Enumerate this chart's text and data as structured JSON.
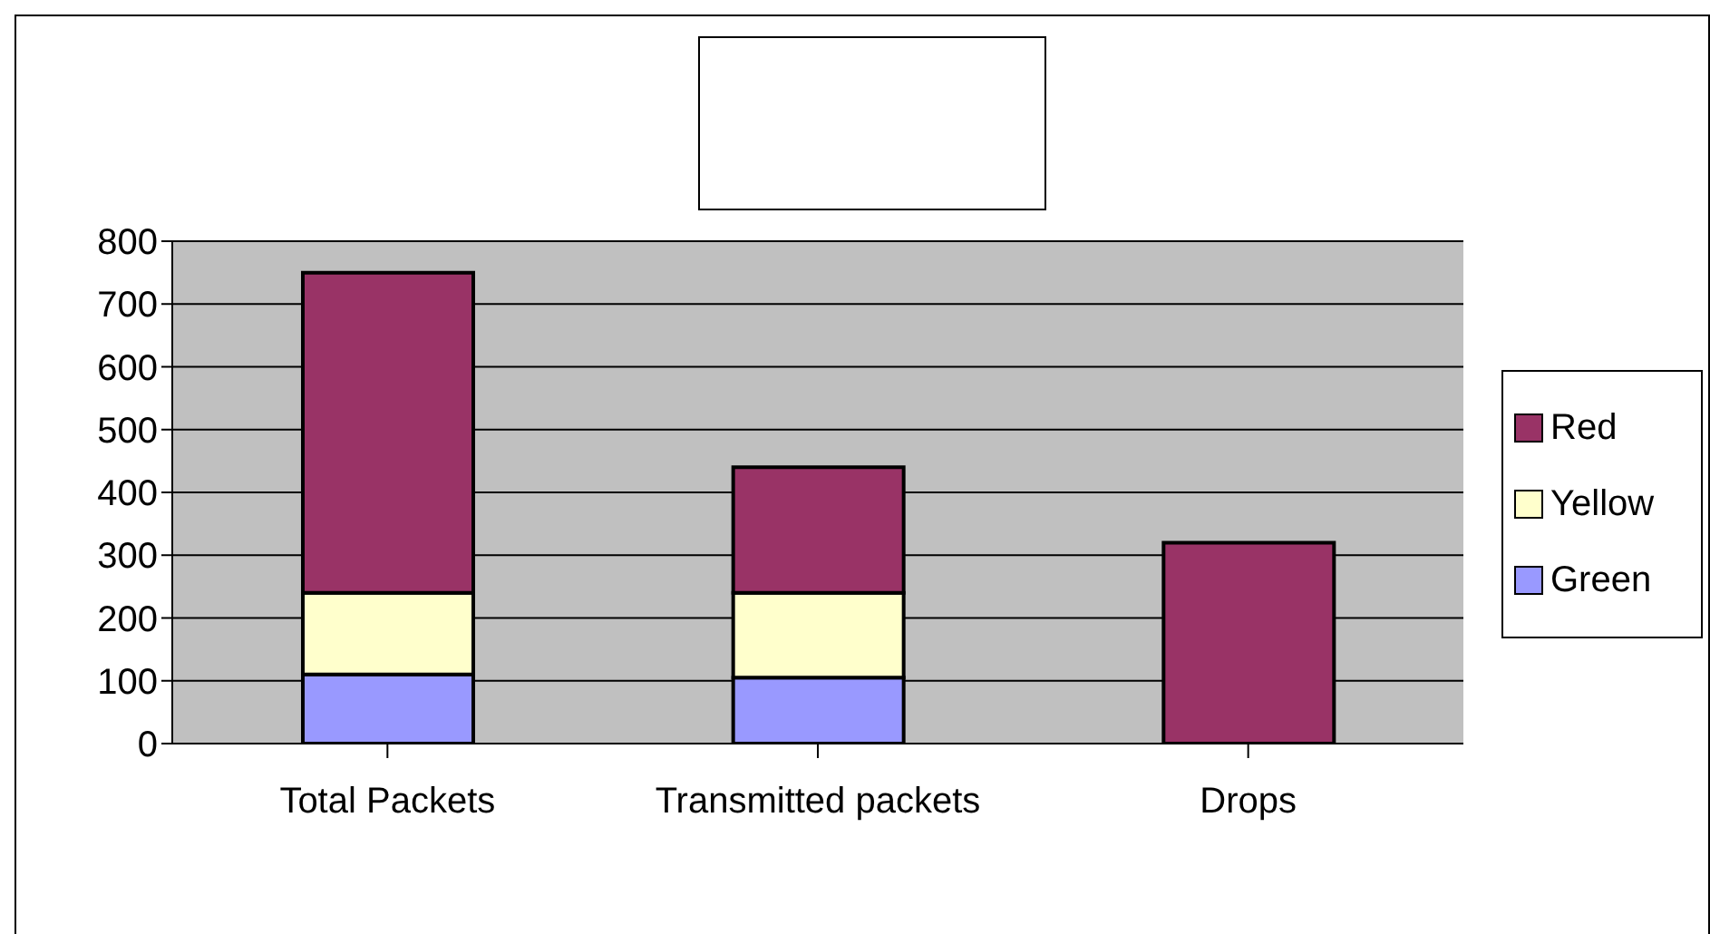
{
  "chart_data": {
    "type": "bar",
    "stacked": true,
    "categories": [
      "Total Packets",
      "Transmitted packets",
      "Drops"
    ],
    "series": [
      {
        "name": "Green",
        "color": "#9999ff",
        "values": [
          110,
          105,
          0
        ]
      },
      {
        "name": "Yellow",
        "color": "#ffffcc",
        "values": [
          130,
          135,
          0
        ]
      },
      {
        "name": "Red",
        "color": "#993366",
        "values": [
          510,
          200,
          320
        ]
      }
    ],
    "ylim": [
      0,
      800
    ],
    "yticks": [
      0,
      100,
      200,
      300,
      400,
      500,
      600,
      700,
      800
    ],
    "grid": "y",
    "legend": "right"
  }
}
